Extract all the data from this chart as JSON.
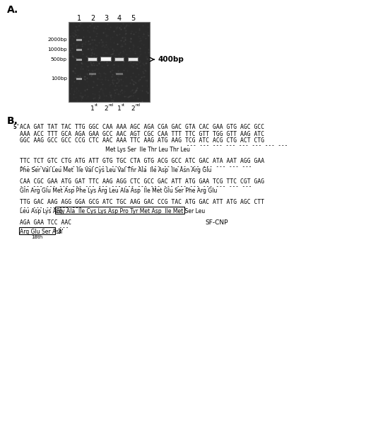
{
  "panel_A_label": "A.",
  "panel_B_label": "B.",
  "gel_lane_labels": [
    "1",
    "2",
    "3",
    "4",
    "5"
  ],
  "gel_marker_labels": [
    "2000bp",
    "1000bp",
    "500bp",
    "100bp"
  ],
  "gel_sublabels": [
    [
      "1",
      "st"
    ],
    [
      "2",
      "nd"
    ],
    [
      "1",
      "st"
    ],
    [
      "2",
      "nd"
    ]
  ],
  "arrow_label": "400bp",
  "seq_block1_dna": [
    "ACA GAT TAT TAC TTG GGC CAA AAA AGC AGA CGA GAC GTA CAC GAA GTG AGC GCC",
    "AAA ACC TTT GCA AGA GAA GCC AAC AGT CGC CAA TTT TTC GTT TGG GTT AAG ATC",
    "GGC AAG GCC GCC CCG CTC AAC AAA TTC AAG ATG AAG TCG ATC ACG CTG ACT CTG"
  ],
  "seq_block1_dashes": "                                                   --- --- --- --- --- --- --- ---",
  "seq_block1_aa": "                                                   Met Lys Ser  Ile Thr Leu Thr Leu",
  "seq_block2_dna": "TTC TCT GTC CTG ATG ATT GTG TGC CTA GTG ACG GCC ATC GAC ATA AAT AGG GAA",
  "seq_block2_dashes": "--- --- --- --- --- --- --- --- --- --- --- --- --- --- --- --- --- ---",
  "seq_block2_aa": "Phe Ser Val Leu Met  Ile Val Cys Leu Val Thr Ala  Ile Asp  Ile Asn Arg Glu",
  "seq_block3_dna": "CAA CGC GAA ATG GAT TTC AAG AGG CTC GCC GAC ATT ATG GAA TCG TTC CGT GAG",
  "seq_block3_dashes": "--- --- --- --- --- --- --- --- --- --- --- --- --- --- --- --- --- ---",
  "seq_block3_aa": "Gln Arg Glu Met Asp Phe Lys Arg Leu Ala Asp  Ile Met Glu Ser Phe Arg Glu",
  "seq_block4_dna": "TTG GAC AAG AGG GGA GCG ATC TGC AAG GAC CCG TAC ATG GAC ATT ATG AGC CTT",
  "seq_block4_dashes": "--- --- --- --- ---",
  "seq_block4_aa_before": "Leu Asp Lys Arg ",
  "seq_block4_aa_boxed": "Gly Ala  Ile Cys Lys Asp Pro Tyr Met Asp  Ile Met Ser Leu",
  "seq_block5_dna": "AGA GAA TCC AAC",
  "seq_block5_sfcnp": "SF-CNP",
  "seq_block5_dashes": "--- --- --- ---",
  "seq_block5_boxed": "Arg Glu Ser Asn",
  "seq_block5_prime3": "3'",
  "seq_block5_18th": "18th",
  "background_color": "#ffffff",
  "text_color": "#000000"
}
